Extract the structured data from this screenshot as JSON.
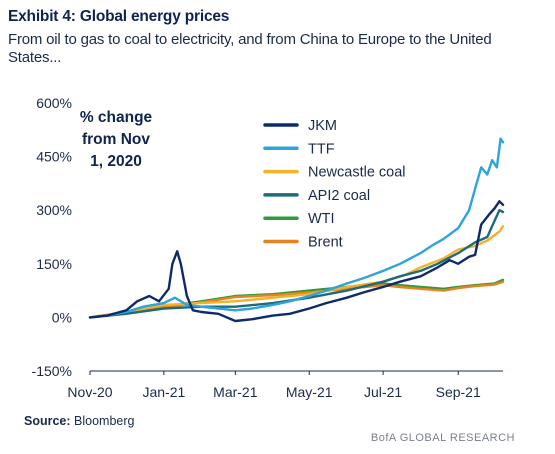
{
  "header": {
    "title": "Exhibit 4: Global energy prices",
    "subtitle": "From oil to gas to coal to electricity, and from China to Europe to the United States..."
  },
  "source": {
    "label": "Source:",
    "text": "Bloomberg"
  },
  "footer": {
    "brand": "BofA GLOBAL RESEARCH"
  },
  "chart_data": {
    "type": "line",
    "title": "",
    "annotation": [
      "% change",
      "from Nov",
      "1, 2020"
    ],
    "xlabel": "",
    "ylabel": "",
    "x_ticks": [
      "Nov-20",
      "Jan-21",
      "Mar-21",
      "May-21",
      "Jul-21",
      "Sep-21"
    ],
    "x_tick_dates": [
      "2020-11-01",
      "2021-01-01",
      "2021-03-01",
      "2021-05-01",
      "2021-07-01",
      "2021-09-01"
    ],
    "x_range": [
      "2020-11-01",
      "2021-10-08"
    ],
    "y_ticks": [
      "600%",
      "450%",
      "300%",
      "150%",
      "0%",
      "-150%"
    ],
    "y_tick_values": [
      600,
      450,
      300,
      150,
      0,
      -150
    ],
    "ylim": [
      -150,
      600
    ],
    "grid": false,
    "legend_position": "top-center",
    "series": [
      {
        "name": "JKM",
        "color": "#0f2a6b",
        "points": [
          [
            "2020-11-01",
            0
          ],
          [
            "2020-11-15",
            5
          ],
          [
            "2020-12-01",
            20
          ],
          [
            "2020-12-10",
            45
          ],
          [
            "2020-12-20",
            60
          ],
          [
            "2020-12-28",
            45
          ],
          [
            "2021-01-05",
            80
          ],
          [
            "2021-01-08",
            150
          ],
          [
            "2021-01-12",
            185
          ],
          [
            "2021-01-15",
            150
          ],
          [
            "2021-01-20",
            60
          ],
          [
            "2021-01-25",
            20
          ],
          [
            "2021-02-01",
            15
          ],
          [
            "2021-02-15",
            10
          ],
          [
            "2021-03-01",
            -10
          ],
          [
            "2021-03-15",
            -5
          ],
          [
            "2021-04-01",
            5
          ],
          [
            "2021-04-15",
            10
          ],
          [
            "2021-05-01",
            25
          ],
          [
            "2021-05-15",
            40
          ],
          [
            "2021-06-01",
            55
          ],
          [
            "2021-06-15",
            70
          ],
          [
            "2021-07-01",
            85
          ],
          [
            "2021-07-15",
            100
          ],
          [
            "2021-08-01",
            115
          ],
          [
            "2021-08-15",
            140
          ],
          [
            "2021-08-25",
            160
          ],
          [
            "2021-09-01",
            150
          ],
          [
            "2021-09-10",
            170
          ],
          [
            "2021-09-15",
            175
          ],
          [
            "2021-09-20",
            260
          ],
          [
            "2021-09-27",
            290
          ],
          [
            "2021-10-01",
            305
          ],
          [
            "2021-10-05",
            325
          ],
          [
            "2021-10-08",
            315
          ]
        ]
      },
      {
        "name": "TTF",
        "color": "#2ea3dc",
        "points": [
          [
            "2020-11-01",
            0
          ],
          [
            "2020-11-15",
            5
          ],
          [
            "2020-12-01",
            15
          ],
          [
            "2020-12-15",
            30
          ],
          [
            "2021-01-01",
            40
          ],
          [
            "2021-01-10",
            55
          ],
          [
            "2021-01-20",
            35
          ],
          [
            "2021-02-01",
            30
          ],
          [
            "2021-02-15",
            25
          ],
          [
            "2021-03-01",
            20
          ],
          [
            "2021-03-15",
            25
          ],
          [
            "2021-04-01",
            35
          ],
          [
            "2021-04-15",
            45
          ],
          [
            "2021-05-01",
            60
          ],
          [
            "2021-05-15",
            75
          ],
          [
            "2021-06-01",
            95
          ],
          [
            "2021-06-15",
            110
          ],
          [
            "2021-07-01",
            130
          ],
          [
            "2021-07-15",
            150
          ],
          [
            "2021-08-01",
            180
          ],
          [
            "2021-08-10",
            200
          ],
          [
            "2021-08-20",
            220
          ],
          [
            "2021-09-01",
            250
          ],
          [
            "2021-09-10",
            300
          ],
          [
            "2021-09-15",
            360
          ],
          [
            "2021-09-20",
            420
          ],
          [
            "2021-09-25",
            400
          ],
          [
            "2021-09-29",
            440
          ],
          [
            "2021-10-03",
            420
          ],
          [
            "2021-10-06",
            500
          ],
          [
            "2021-10-08",
            490
          ]
        ]
      },
      {
        "name": "Newcastle coal",
        "color": "#f2b22a",
        "points": [
          [
            "2020-11-01",
            0
          ],
          [
            "2020-12-01",
            15
          ],
          [
            "2021-01-01",
            35
          ],
          [
            "2021-02-01",
            40
          ],
          [
            "2021-03-01",
            45
          ],
          [
            "2021-04-01",
            55
          ],
          [
            "2021-05-01",
            65
          ],
          [
            "2021-06-01",
            85
          ],
          [
            "2021-07-01",
            100
          ],
          [
            "2021-07-20",
            120
          ],
          [
            "2021-08-01",
            140
          ],
          [
            "2021-08-20",
            165
          ],
          [
            "2021-09-01",
            190
          ],
          [
            "2021-09-15",
            200
          ],
          [
            "2021-09-25",
            215
          ],
          [
            "2021-10-05",
            240
          ],
          [
            "2021-10-08",
            255
          ]
        ]
      },
      {
        "name": "API2 coal",
        "color": "#1e6b7c",
        "points": [
          [
            "2020-11-01",
            0
          ],
          [
            "2020-12-01",
            10
          ],
          [
            "2021-01-01",
            25
          ],
          [
            "2021-02-01",
            30
          ],
          [
            "2021-03-01",
            30
          ],
          [
            "2021-04-01",
            40
          ],
          [
            "2021-05-01",
            55
          ],
          [
            "2021-06-01",
            75
          ],
          [
            "2021-07-01",
            100
          ],
          [
            "2021-07-15",
            115
          ],
          [
            "2021-08-01",
            130
          ],
          [
            "2021-08-15",
            150
          ],
          [
            "2021-09-01",
            180
          ],
          [
            "2021-09-15",
            210
          ],
          [
            "2021-09-25",
            225
          ],
          [
            "2021-10-01",
            270
          ],
          [
            "2021-10-05",
            300
          ],
          [
            "2021-10-08",
            295
          ]
        ]
      },
      {
        "name": "WTI",
        "color": "#2e9a3c",
        "points": [
          [
            "2020-11-01",
            0
          ],
          [
            "2020-12-01",
            15
          ],
          [
            "2021-01-01",
            30
          ],
          [
            "2021-02-01",
            45
          ],
          [
            "2021-03-01",
            60
          ],
          [
            "2021-04-01",
            65
          ],
          [
            "2021-05-01",
            75
          ],
          [
            "2021-06-01",
            85
          ],
          [
            "2021-07-01",
            95
          ],
          [
            "2021-07-15",
            90
          ],
          [
            "2021-08-01",
            85
          ],
          [
            "2021-08-20",
            80
          ],
          [
            "2021-09-01",
            85
          ],
          [
            "2021-09-15",
            90
          ],
          [
            "2021-10-01",
            95
          ],
          [
            "2021-10-08",
            105
          ]
        ]
      },
      {
        "name": "Brent",
        "color": "#e5831f",
        "points": [
          [
            "2020-11-01",
            0
          ],
          [
            "2020-12-01",
            15
          ],
          [
            "2021-01-01",
            28
          ],
          [
            "2021-02-01",
            42
          ],
          [
            "2021-03-01",
            57
          ],
          [
            "2021-04-01",
            62
          ],
          [
            "2021-05-01",
            70
          ],
          [
            "2021-06-01",
            80
          ],
          [
            "2021-07-01",
            90
          ],
          [
            "2021-07-15",
            85
          ],
          [
            "2021-08-01",
            80
          ],
          [
            "2021-08-20",
            75
          ],
          [
            "2021-09-01",
            82
          ],
          [
            "2021-09-15",
            88
          ],
          [
            "2021-10-01",
            92
          ],
          [
            "2021-10-08",
            100
          ]
        ]
      }
    ]
  }
}
